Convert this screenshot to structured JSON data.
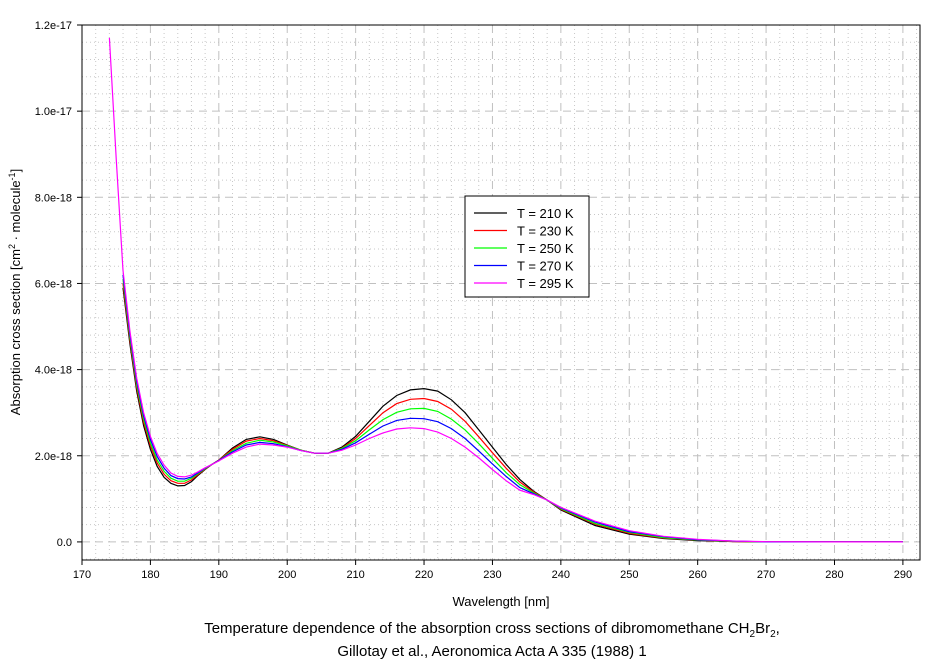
{
  "chart_data": {
    "type": "line",
    "title": "",
    "caption_line1": "Temperature dependence of the absorption cross sections of dibromomethane CH",
    "caption_sub1": "2",
    "caption_mid": "Br",
    "caption_sub2": "2",
    "caption_end": ",",
    "caption_line2": "Gillotay et al., Aeronomica Acta A 335 (1988) 1",
    "xlabel": "Wavelength [nm]",
    "ylabel_main": "Absorption cross section [cm",
    "ylabel_sup1": "2",
    "ylabel_mid": " · molecule",
    "ylabel_sup2": "-1",
    "ylabel_end": "]",
    "xlim": [
      170,
      292.5
    ],
    "ylim": [
      -4.2e-19,
      1.2e-17
    ],
    "y_unit": 1e-18,
    "grid": true,
    "legend_position": "center",
    "x_ticks": [
      "170",
      "180",
      "190",
      "200",
      "210",
      "220",
      "230",
      "240",
      "250",
      "260",
      "270",
      "280",
      "290"
    ],
    "y_ticks": [
      "0.0",
      "2.0e-18",
      "4.0e-18",
      "6.0e-18",
      "8.0e-18",
      "1.0e-17",
      "1.2e-17"
    ],
    "x": [
      174,
      175,
      176,
      177,
      178,
      179,
      180,
      181,
      182,
      183,
      184,
      185,
      186,
      187,
      188,
      189,
      190,
      192,
      194,
      196,
      198,
      200,
      202,
      204,
      206,
      208,
      210,
      212,
      214,
      216,
      218,
      220,
      222,
      224,
      226,
      228,
      230,
      232,
      234,
      236,
      238,
      240,
      245,
      250,
      255,
      260,
      265,
      270,
      280,
      290
    ],
    "series": [
      {
        "name": "T = 210 K",
        "color": "#000000",
        "values": [
          null,
          null,
          5.9,
          4.6,
          3.5,
          2.7,
          2.15,
          1.75,
          1.5,
          1.36,
          1.3,
          1.31,
          1.4,
          1.55,
          1.68,
          1.8,
          1.9,
          2.18,
          2.38,
          2.44,
          2.38,
          2.25,
          2.13,
          2.06,
          2.06,
          2.2,
          2.45,
          2.8,
          3.15,
          3.4,
          3.53,
          3.56,
          3.5,
          3.3,
          3.0,
          2.6,
          2.2,
          1.8,
          1.45,
          1.18,
          0.97,
          0.74,
          0.38,
          0.18,
          0.08,
          0.03,
          0.01,
          0,
          0,
          0
        ]
      },
      {
        "name": "T = 230 K",
        "color": "#ff0000",
        "values": [
          null,
          null,
          6.0,
          4.68,
          3.58,
          2.78,
          2.23,
          1.83,
          1.57,
          1.42,
          1.36,
          1.36,
          1.44,
          1.57,
          1.69,
          1.8,
          1.9,
          2.15,
          2.34,
          2.4,
          2.35,
          2.24,
          2.13,
          2.06,
          2.06,
          2.18,
          2.4,
          2.7,
          3.0,
          3.21,
          3.31,
          3.33,
          3.26,
          3.08,
          2.8,
          2.44,
          2.07,
          1.71,
          1.39,
          1.16,
          0.97,
          0.76,
          0.41,
          0.2,
          0.09,
          0.04,
          0.01,
          0,
          0,
          0
        ]
      },
      {
        "name": "T = 250 K",
        "color": "#00ff00",
        "values": [
          null,
          null,
          6.1,
          4.75,
          3.65,
          2.85,
          2.3,
          1.9,
          1.64,
          1.48,
          1.41,
          1.41,
          1.48,
          1.59,
          1.7,
          1.8,
          1.89,
          2.12,
          2.29,
          2.36,
          2.32,
          2.23,
          2.13,
          2.06,
          2.06,
          2.17,
          2.35,
          2.6,
          2.84,
          3.01,
          3.09,
          3.1,
          3.03,
          2.85,
          2.6,
          2.28,
          1.94,
          1.61,
          1.33,
          1.14,
          0.97,
          0.77,
          0.43,
          0.22,
          0.1,
          0.045,
          0.015,
          0,
          0,
          0
        ]
      },
      {
        "name": "T = 270 K",
        "color": "#0000ff",
        "values": [
          null,
          null,
          6.2,
          4.83,
          3.73,
          2.93,
          2.38,
          1.98,
          1.71,
          1.54,
          1.47,
          1.46,
          1.51,
          1.61,
          1.71,
          1.8,
          1.89,
          2.09,
          2.25,
          2.31,
          2.28,
          2.21,
          2.12,
          2.06,
          2.06,
          2.15,
          2.3,
          2.5,
          2.69,
          2.82,
          2.87,
          2.86,
          2.79,
          2.63,
          2.4,
          2.11,
          1.81,
          1.52,
          1.26,
          1.12,
          0.97,
          0.79,
          0.46,
          0.24,
          0.12,
          0.05,
          0.02,
          0,
          0,
          0
        ]
      },
      {
        "name": "T = 295 K",
        "color": "#ff00ff",
        "values": [
          11.7,
          8.9,
          6.3,
          4.9,
          3.8,
          3.0,
          2.45,
          2.05,
          1.78,
          1.6,
          1.52,
          1.51,
          1.55,
          1.63,
          1.72,
          1.8,
          1.88,
          2.06,
          2.2,
          2.27,
          2.25,
          2.2,
          2.12,
          2.06,
          2.06,
          2.13,
          2.25,
          2.4,
          2.53,
          2.62,
          2.65,
          2.63,
          2.55,
          2.4,
          2.2,
          1.95,
          1.68,
          1.42,
          1.2,
          1.1,
          0.97,
          0.8,
          0.48,
          0.26,
          0.13,
          0.06,
          0.02,
          0.005,
          0,
          0
        ]
      }
    ]
  }
}
